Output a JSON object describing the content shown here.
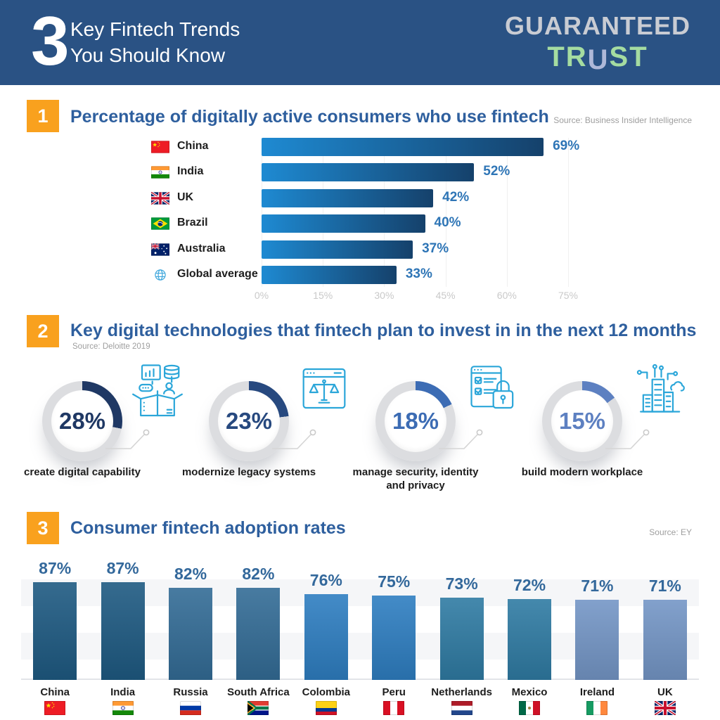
{
  "header": {
    "big_number": "3",
    "title_line1": "Key Fintech Trends",
    "title_line2": "You Should Know",
    "logo_top": "GUARANTEED",
    "logo_tr": "TR",
    "logo_u": "U",
    "logo_st": "ST"
  },
  "colors": {
    "header_bg": "#2A5284",
    "badge_orange": "#F9A11E",
    "section_title_blue": "#2E5F9E",
    "bar_gradient_start": "#1E8AD2",
    "bar_gradient_end": "#15416B",
    "value_label_blue": "#2E75B6",
    "icon_line_blue": "#2BA6D9",
    "logo_gray": "#C9CCD3",
    "logo_green": "#A5DCA1",
    "logo_u_lavender": "#AEB8D8"
  },
  "chart_data": [
    {
      "type": "bar",
      "orientation": "horizontal",
      "badge": "1",
      "title": "Percentage of digitally active consumers who use fintech",
      "source": "Source: Business Insider Intelligence",
      "categories": [
        "China",
        "India",
        "UK",
        "Brazil",
        "Australia",
        "Global average"
      ],
      "values": [
        69,
        52,
        42,
        40,
        37,
        33
      ],
      "value_labels": [
        "69%",
        "52%",
        "42%",
        "40%",
        "37%",
        "33%"
      ],
      "flags": [
        "cn",
        "in",
        "gb",
        "br",
        "au",
        "globe"
      ],
      "xlim": [
        0,
        75
      ],
      "x_ticks": [
        "0%",
        "15%",
        "30%",
        "45%",
        "60%",
        "75%"
      ],
      "grid": "vertical",
      "legend": "none"
    },
    {
      "type": "donut",
      "badge": "2",
      "title": "Key digital technologies that fintech plan to invest in in the next 12 months",
      "source": "Source: Deloitte 2019",
      "items": [
        {
          "value": 28,
          "value_label": "28%",
          "label": "create digital capability",
          "arc_color": "#1F3864",
          "ring_color": "#DCDDE0",
          "icon": "box-analytics-icon"
        },
        {
          "value": 23,
          "value_label": "23%",
          "label": "modernize legacy systems",
          "arc_color": "#27497F",
          "ring_color": "#DCDDE0",
          "icon": "scales-window-icon"
        },
        {
          "value": 18,
          "value_label": "18%",
          "label": "manage security, identity and privacy",
          "arc_color": "#3C6CB4",
          "ring_color": "#DCDDE0",
          "icon": "checklist-lock-icon"
        },
        {
          "value": 15,
          "value_label": "15%",
          "label": "build modern workplace",
          "arc_color": "#5D80C1",
          "ring_color": "#DCDDE0",
          "icon": "workplace-circuit-icon"
        }
      ]
    },
    {
      "type": "bar",
      "orientation": "vertical",
      "badge": "3",
      "title": "Consumer fintech adoption rates",
      "source": "Source: EY",
      "categories": [
        "China",
        "India",
        "Russia",
        "South Africa",
        "Colombia",
        "Peru",
        "Netherlands",
        "Mexico",
        "Ireland",
        "UK"
      ],
      "values": [
        87,
        87,
        82,
        82,
        76,
        75,
        73,
        72,
        71,
        71
      ],
      "value_labels": [
        "87%",
        "87%",
        "82%",
        "82%",
        "76%",
        "75%",
        "73%",
        "72%",
        "71%",
        "71%"
      ],
      "flags": [
        "cn",
        "in",
        "ru",
        "za",
        "co",
        "pe",
        "nl",
        "mx",
        "ie",
        "gb"
      ],
      "bar_colors": [
        "#1E5A82",
        "#1E5A82",
        "#336C96",
        "#336C96",
        "#2E7EC1",
        "#2E7EC1",
        "#2F7BA3",
        "#2F7BA3",
        "#7496C6",
        "#7496C6"
      ],
      "ylim": [
        0,
        100
      ],
      "grid": "horizontal-bands"
    }
  ]
}
